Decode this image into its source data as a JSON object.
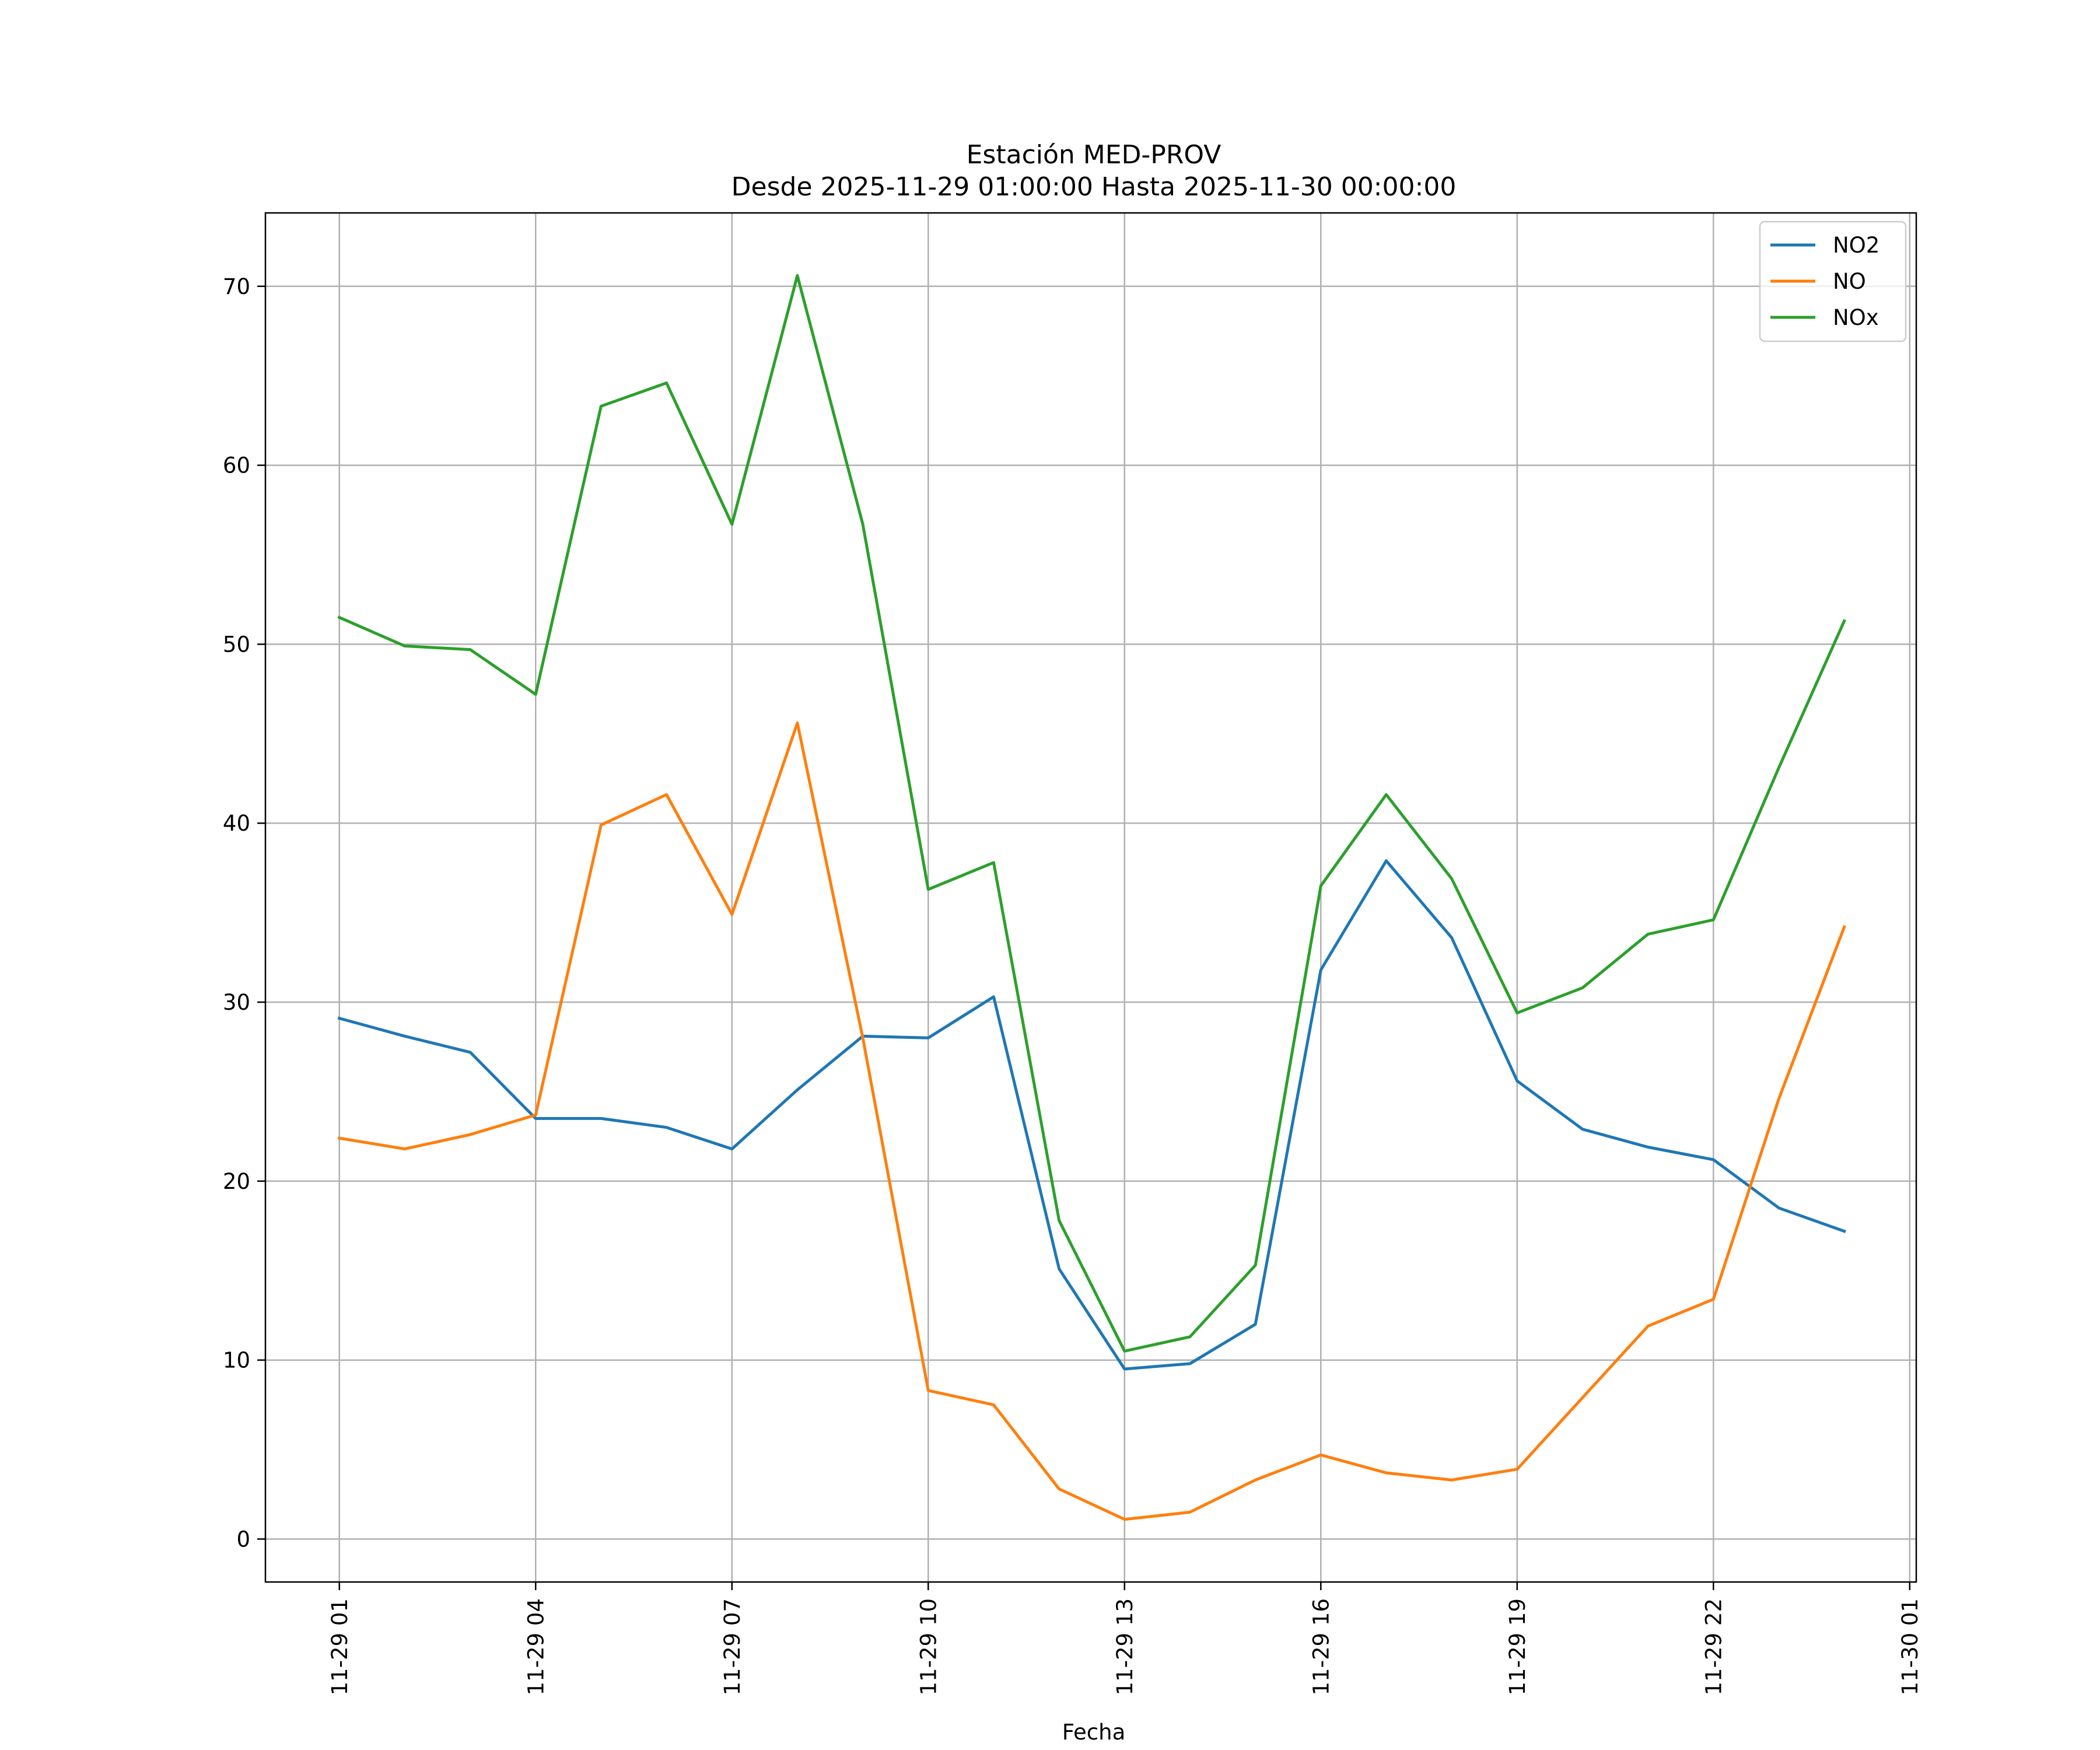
{
  "chart_data": {
    "type": "line",
    "title_line1": "Estación MED-PROV",
    "title_line2": "Desde 2025-11-29 01:00:00 Hasta 2025-11-30 00:00:00",
    "xlabel": "Fecha",
    "ylabel": "",
    "grid": true,
    "legend_position": "top-right",
    "x_hours": [
      1,
      2,
      3,
      4,
      5,
      6,
      7,
      8,
      9,
      10,
      11,
      12,
      13,
      14,
      15,
      16,
      17,
      18,
      19,
      20,
      21,
      22,
      23,
      24
    ],
    "xlim": [
      -0.13,
      25.1
    ],
    "ylim": [
      -2.4,
      74.1
    ],
    "x_ticks": [
      {
        "hour": 1,
        "label": "11-29 01"
      },
      {
        "hour": 4,
        "label": "11-29 04"
      },
      {
        "hour": 7,
        "label": "11-29 07"
      },
      {
        "hour": 10,
        "label": "11-29 10"
      },
      {
        "hour": 13,
        "label": "11-29 13"
      },
      {
        "hour": 16,
        "label": "11-29 16"
      },
      {
        "hour": 19,
        "label": "11-29 19"
      },
      {
        "hour": 22,
        "label": "11-29 22"
      },
      {
        "hour": 25,
        "label": "11-30 01"
      }
    ],
    "y_ticks": [
      {
        "value": 0,
        "label": "0"
      },
      {
        "value": 10,
        "label": "10"
      },
      {
        "value": 20,
        "label": "20"
      },
      {
        "value": 30,
        "label": "30"
      },
      {
        "value": 40,
        "label": "40"
      },
      {
        "value": 50,
        "label": "50"
      },
      {
        "value": 60,
        "label": "60"
      },
      {
        "value": 70,
        "label": "70"
      }
    ],
    "series": [
      {
        "name": "NO2",
        "color": "#1f77b4",
        "values": [
          29.1,
          28.1,
          27.2,
          23.5,
          23.5,
          23.0,
          21.8,
          25.1,
          28.1,
          28.0,
          30.3,
          15.1,
          9.5,
          9.8,
          12.0,
          31.8,
          37.9,
          33.6,
          25.6,
          22.9,
          21.9,
          21.2,
          18.5,
          17.2
        ]
      },
      {
        "name": "NO",
        "color": "#ff7f0e",
        "values": [
          22.4,
          21.8,
          22.6,
          23.7,
          39.9,
          41.6,
          34.9,
          45.6,
          28.0,
          8.3,
          7.5,
          2.8,
          1.1,
          1.5,
          3.3,
          4.7,
          3.7,
          3.3,
          3.9,
          7.9,
          11.9,
          13.4,
          24.6,
          34.2
        ]
      },
      {
        "name": "NOx",
        "color": "#2ca02c",
        "values": [
          51.5,
          49.9,
          49.7,
          47.2,
          63.3,
          64.6,
          56.7,
          70.6,
          56.7,
          36.3,
          37.8,
          17.8,
          10.5,
          11.3,
          15.3,
          36.5,
          41.6,
          36.9,
          29.4,
          30.8,
          33.8,
          34.6,
          43.1,
          51.3
        ]
      }
    ]
  }
}
